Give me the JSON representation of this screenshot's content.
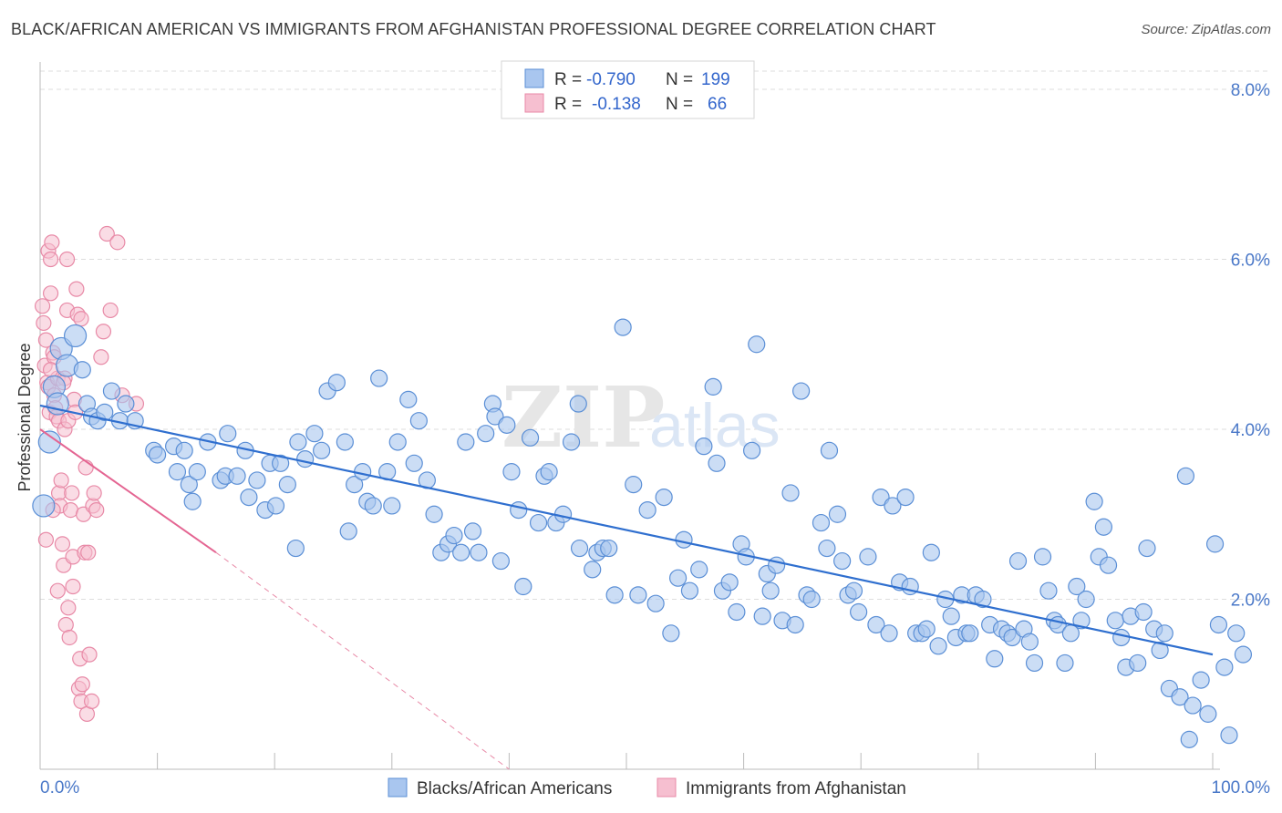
{
  "title": "BLACK/AFRICAN AMERICAN VS IMMIGRANTS FROM AFGHANISTAN PROFESSIONAL DEGREE CORRELATION CHART",
  "source": "Source: ZipAtlas.com",
  "watermark": {
    "zip": "ZIP",
    "atlas": "atlas"
  },
  "colors": {
    "blue_fill": "#a9c6ef",
    "blue_stroke": "#5b8fd6",
    "blue_line": "#2f6fcf",
    "pink_fill": "#f6bfd0",
    "pink_stroke": "#e88aa7",
    "pink_line": "#e46592",
    "grid": "#dddddd",
    "tick_text": "#4a78c8"
  },
  "legend": {
    "rows": [
      {
        "r_label": "R =",
        "r_value": "-0.790",
        "n_label": "N =",
        "n_value": "199"
      },
      {
        "r_label": "R =",
        "r_value": "-0.138",
        "n_label": "N =",
        "n_value": "66"
      }
    ]
  },
  "bottom_legend": [
    "Blacks/African Americans",
    "Immigrants from Afghanistan"
  ],
  "chart_data": {
    "type": "scatter",
    "title": "BLACK/AFRICAN AMERICAN VS IMMIGRANTS FROM AFGHANISTAN PROFESSIONAL DEGREE CORRELATION CHART",
    "xlabel": "",
    "ylabel": "Professional Degree",
    "xlim": [
      0,
      100
    ],
    "ylim": [
      0,
      8
    ],
    "x_tick_labels": [
      "0.0%",
      "100.0%"
    ],
    "y_tick_labels": [
      "2.0%",
      "4.0%",
      "6.0%",
      "8.0%"
    ],
    "y_ticks": [
      2,
      4,
      6,
      8
    ],
    "grid": true,
    "legend_position": "top-center",
    "series": [
      {
        "name": "Blacks/African Americans",
        "trend": {
          "x": [
            0,
            100
          ],
          "y": [
            4.28,
            1.35
          ]
        },
        "points": [
          [
            0.3,
            3.1
          ],
          [
            0.8,
            3.85
          ],
          [
            1.2,
            4.5
          ],
          [
            1.5,
            4.3
          ],
          [
            1.8,
            4.95
          ],
          [
            2.3,
            4.75
          ],
          [
            3.0,
            5.1
          ],
          [
            3.6,
            4.7
          ],
          [
            4.0,
            4.3
          ],
          [
            4.4,
            4.15
          ],
          [
            4.9,
            4.1
          ],
          [
            5.5,
            4.2
          ],
          [
            6.1,
            4.45
          ],
          [
            6.8,
            4.1
          ],
          [
            7.3,
            4.3
          ],
          [
            8.1,
            4.1
          ],
          [
            9.7,
            3.75
          ],
          [
            10.0,
            3.7
          ],
          [
            11.4,
            3.8
          ],
          [
            11.7,
            3.5
          ],
          [
            12.3,
            3.75
          ],
          [
            12.7,
            3.35
          ],
          [
            13.0,
            3.15
          ],
          [
            13.4,
            3.5
          ],
          [
            14.3,
            3.85
          ],
          [
            15.4,
            3.4
          ],
          [
            16.0,
            3.95
          ],
          [
            15.8,
            3.45
          ],
          [
            16.8,
            3.45
          ],
          [
            17.5,
            3.75
          ],
          [
            17.8,
            3.2
          ],
          [
            18.5,
            3.4
          ],
          [
            19.2,
            3.05
          ],
          [
            19.6,
            3.6
          ],
          [
            20.1,
            3.1
          ],
          [
            20.5,
            3.6
          ],
          [
            21.1,
            3.35
          ],
          [
            21.8,
            2.6
          ],
          [
            22.0,
            3.85
          ],
          [
            22.6,
            3.65
          ],
          [
            23.4,
            3.95
          ],
          [
            24.0,
            3.75
          ],
          [
            24.5,
            4.45
          ],
          [
            25.3,
            4.55
          ],
          [
            26.0,
            3.85
          ],
          [
            26.3,
            2.8
          ],
          [
            26.8,
            3.35
          ],
          [
            27.5,
            3.5
          ],
          [
            27.9,
            3.15
          ],
          [
            28.4,
            3.1
          ],
          [
            28.9,
            4.6
          ],
          [
            29.6,
            3.5
          ],
          [
            30.0,
            3.1
          ],
          [
            30.5,
            3.85
          ],
          [
            31.4,
            4.35
          ],
          [
            31.9,
            3.6
          ],
          [
            32.3,
            4.1
          ],
          [
            33.0,
            3.4
          ],
          [
            33.6,
            3.0
          ],
          [
            34.2,
            2.55
          ],
          [
            34.8,
            2.65
          ],
          [
            35.3,
            2.75
          ],
          [
            35.9,
            2.55
          ],
          [
            36.3,
            3.85
          ],
          [
            36.9,
            2.8
          ],
          [
            37.4,
            2.55
          ],
          [
            38.0,
            3.95
          ],
          [
            38.6,
            4.3
          ],
          [
            38.8,
            4.15
          ],
          [
            39.3,
            2.45
          ],
          [
            39.8,
            4.05
          ],
          [
            40.2,
            3.5
          ],
          [
            40.8,
            3.05
          ],
          [
            41.2,
            2.15
          ],
          [
            41.8,
            3.9
          ],
          [
            42.5,
            2.9
          ],
          [
            43.0,
            3.45
          ],
          [
            43.4,
            3.5
          ],
          [
            44.0,
            2.9
          ],
          [
            44.6,
            3.0
          ],
          [
            45.3,
            3.85
          ],
          [
            45.9,
            4.3
          ],
          [
            46.0,
            2.6
          ],
          [
            47.1,
            2.35
          ],
          [
            47.5,
            2.55
          ],
          [
            48.0,
            2.6
          ],
          [
            48.5,
            2.6
          ],
          [
            49.0,
            2.05
          ],
          [
            49.7,
            5.2
          ],
          [
            50.6,
            3.35
          ],
          [
            51.0,
            2.05
          ],
          [
            51.8,
            3.05
          ],
          [
            52.5,
            1.95
          ],
          [
            53.2,
            3.2
          ],
          [
            53.8,
            1.6
          ],
          [
            54.4,
            2.25
          ],
          [
            54.9,
            2.7
          ],
          [
            55.4,
            2.1
          ],
          [
            56.2,
            2.35
          ],
          [
            56.6,
            3.8
          ],
          [
            57.4,
            4.5
          ],
          [
            57.7,
            3.6
          ],
          [
            58.2,
            2.1
          ],
          [
            58.8,
            2.2
          ],
          [
            59.4,
            1.85
          ],
          [
            59.8,
            2.65
          ],
          [
            60.2,
            2.5
          ],
          [
            60.7,
            3.75
          ],
          [
            61.1,
            5.0
          ],
          [
            61.6,
            1.8
          ],
          [
            62.0,
            2.3
          ],
          [
            62.3,
            2.1
          ],
          [
            62.8,
            2.4
          ],
          [
            63.3,
            1.75
          ],
          [
            64.0,
            3.25
          ],
          [
            64.4,
            1.7
          ],
          [
            64.9,
            4.45
          ],
          [
            65.4,
            2.05
          ],
          [
            65.8,
            2.0
          ],
          [
            66.6,
            2.9
          ],
          [
            67.1,
            2.6
          ],
          [
            67.3,
            3.75
          ],
          [
            68.0,
            3.0
          ],
          [
            68.4,
            2.45
          ],
          [
            68.9,
            2.05
          ],
          [
            69.4,
            2.1
          ],
          [
            69.8,
            1.85
          ],
          [
            70.6,
            2.5
          ],
          [
            71.3,
            1.7
          ],
          [
            71.7,
            3.2
          ],
          [
            72.4,
            1.6
          ],
          [
            72.7,
            3.1
          ],
          [
            73.3,
            2.2
          ],
          [
            73.8,
            3.2
          ],
          [
            74.2,
            2.15
          ],
          [
            74.7,
            1.6
          ],
          [
            75.2,
            1.6
          ],
          [
            75.6,
            1.65
          ],
          [
            76.0,
            2.55
          ],
          [
            76.6,
            1.45
          ],
          [
            77.2,
            2.0
          ],
          [
            77.7,
            1.8
          ],
          [
            78.1,
            1.55
          ],
          [
            78.6,
            2.05
          ],
          [
            79.0,
            1.6
          ],
          [
            79.3,
            1.6
          ],
          [
            79.8,
            2.05
          ],
          [
            80.4,
            2.0
          ],
          [
            81.0,
            1.7
          ],
          [
            81.4,
            1.3
          ],
          [
            82.0,
            1.65
          ],
          [
            82.5,
            1.6
          ],
          [
            82.9,
            1.55
          ],
          [
            83.4,
            2.45
          ],
          [
            83.9,
            1.65
          ],
          [
            84.4,
            1.5
          ],
          [
            84.8,
            1.25
          ],
          [
            85.5,
            2.5
          ],
          [
            86.0,
            2.1
          ],
          [
            86.5,
            1.75
          ],
          [
            86.8,
            1.7
          ],
          [
            87.4,
            1.25
          ],
          [
            87.9,
            1.6
          ],
          [
            88.4,
            2.15
          ],
          [
            88.8,
            1.75
          ],
          [
            89.2,
            2.0
          ],
          [
            89.9,
            3.15
          ],
          [
            90.3,
            2.5
          ],
          [
            90.7,
            2.85
          ],
          [
            91.1,
            2.4
          ],
          [
            91.7,
            1.75
          ],
          [
            92.2,
            1.55
          ],
          [
            92.6,
            1.2
          ],
          [
            93.0,
            1.8
          ],
          [
            93.6,
            1.25
          ],
          [
            94.1,
            1.85
          ],
          [
            94.4,
            2.6
          ],
          [
            95.0,
            1.65
          ],
          [
            95.5,
            1.4
          ],
          [
            95.9,
            1.6
          ],
          [
            96.3,
            0.95
          ],
          [
            97.2,
            0.85
          ],
          [
            97.7,
            3.45
          ],
          [
            98.3,
            0.75
          ],
          [
            98.0,
            0.35
          ],
          [
            99.0,
            1.05
          ],
          [
            99.6,
            0.65
          ],
          [
            100.2,
            2.65
          ],
          [
            100.5,
            1.7
          ],
          [
            101.0,
            1.2
          ],
          [
            101.4,
            0.4
          ],
          [
            102.0,
            1.6
          ],
          [
            102.6,
            1.35
          ]
        ]
      },
      {
        "name": "Immigrants from Afghanistan",
        "trend": {
          "x": [
            0,
            15
          ],
          "y": [
            4.0,
            2.55
          ]
        },
        "trend_dashed": {
          "x": [
            15,
            40
          ],
          "y": [
            2.55,
            0.0
          ]
        },
        "points": [
          [
            0.2,
            5.45
          ],
          [
            0.3,
            5.25
          ],
          [
            0.4,
            4.75
          ],
          [
            0.5,
            5.05
          ],
          [
            0.6,
            4.55
          ],
          [
            0.7,
            4.5
          ],
          [
            0.8,
            4.2
          ],
          [
            0.9,
            5.6
          ],
          [
            0.7,
            6.1
          ],
          [
            0.9,
            6.0
          ],
          [
            1.0,
            6.2
          ],
          [
            1.1,
            4.9
          ],
          [
            1.2,
            4.85
          ],
          [
            1.2,
            4.4
          ],
          [
            1.3,
            4.25
          ],
          [
            1.4,
            4.15
          ],
          [
            1.5,
            4.6
          ],
          [
            1.6,
            4.1
          ],
          [
            1.6,
            3.25
          ],
          [
            1.7,
            3.1
          ],
          [
            1.8,
            3.4
          ],
          [
            1.9,
            2.65
          ],
          [
            2.0,
            2.4
          ],
          [
            2.1,
            4.0
          ],
          [
            2.1,
            4.6
          ],
          [
            2.2,
            1.7
          ],
          [
            2.3,
            6.0
          ],
          [
            2.3,
            5.4
          ],
          [
            2.4,
            4.1
          ],
          [
            2.4,
            1.9
          ],
          [
            2.5,
            1.55
          ],
          [
            2.6,
            3.05
          ],
          [
            2.7,
            3.25
          ],
          [
            2.8,
            2.5
          ],
          [
            2.9,
            4.35
          ],
          [
            3.0,
            4.2
          ],
          [
            3.1,
            5.65
          ],
          [
            3.2,
            5.35
          ],
          [
            3.3,
            0.95
          ],
          [
            3.4,
            1.3
          ],
          [
            3.5,
            0.8
          ],
          [
            3.6,
            1.0
          ],
          [
            3.7,
            3.0
          ],
          [
            3.8,
            2.55
          ],
          [
            3.9,
            3.55
          ],
          [
            4.0,
            0.65
          ],
          [
            4.1,
            2.55
          ],
          [
            4.2,
            1.35
          ],
          [
            4.4,
            0.8
          ],
          [
            4.5,
            3.1
          ],
          [
            4.6,
            3.25
          ],
          [
            4.8,
            3.05
          ],
          [
            5.2,
            4.85
          ],
          [
            5.4,
            5.15
          ],
          [
            5.7,
            6.3
          ],
          [
            6.0,
            5.4
          ],
          [
            6.6,
            6.2
          ],
          [
            7.0,
            4.4
          ],
          [
            8.2,
            4.3
          ],
          [
            1.5,
            2.1
          ],
          [
            0.5,
            2.7
          ],
          [
            0.9,
            4.7
          ],
          [
            1.1,
            3.05
          ],
          [
            2.0,
            4.55
          ],
          [
            3.5,
            5.3
          ],
          [
            2.8,
            2.15
          ]
        ]
      }
    ]
  }
}
